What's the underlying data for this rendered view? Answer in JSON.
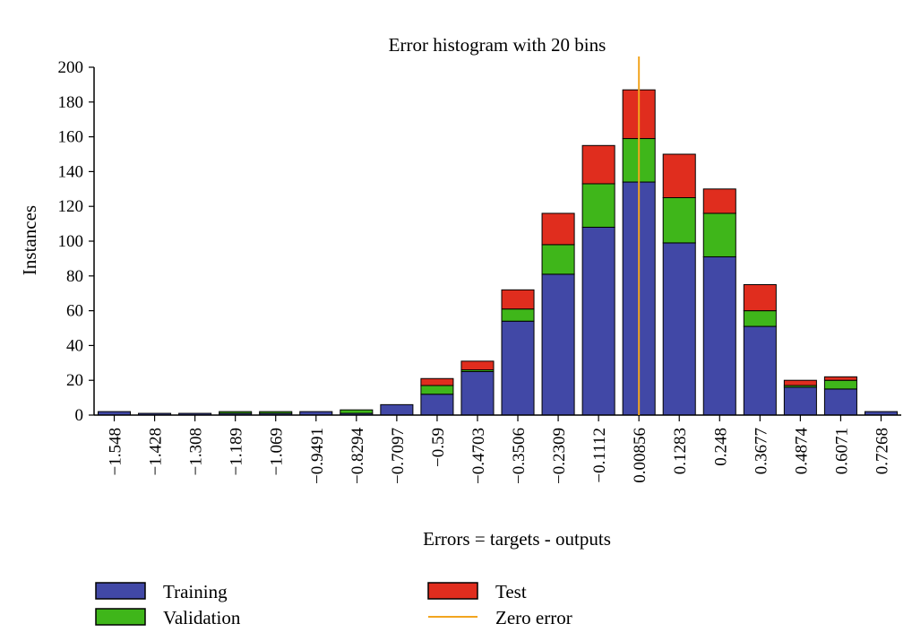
{
  "chart_data": {
    "type": "bar",
    "stacked": true,
    "title": "Error histogram with 20 bins",
    "xlabel": "Errors = targets - outputs",
    "ylabel": "Instances",
    "ylim": [
      0,
      200
    ],
    "yticks": [
      0,
      20,
      40,
      60,
      80,
      100,
      120,
      140,
      160,
      180,
      200
    ],
    "grid": false,
    "legend_position": "bottom",
    "categories": [
      "−1.548",
      "−1.428",
      "−1.308",
      "−1.189",
      "−1.069",
      "−0.9491",
      "−0.8294",
      "−0.7097",
      "−0.59",
      "−0.4703",
      "−0.3506",
      "−0.2309",
      "−0.1112",
      "0.00856",
      "0.1283",
      "0.248",
      "0.3677",
      "0.4874",
      "0.6071",
      "0.7268"
    ],
    "series": [
      {
        "name": "Training",
        "color": "#4148a6",
        "values": [
          2,
          1,
          1,
          1,
          1,
          2,
          1,
          6,
          12,
          25,
          54,
          81,
          108,
          134,
          99,
          91,
          51,
          16,
          15,
          2
        ]
      },
      {
        "name": "Validation",
        "color": "#3fb61a",
        "values": [
          0,
          0,
          0,
          1,
          1,
          0,
          2,
          0,
          5,
          1,
          7,
          17,
          25,
          25,
          26,
          25,
          9,
          1,
          5,
          0
        ]
      },
      {
        "name": "Test",
        "color": "#e02d1e",
        "values": [
          0,
          0,
          0,
          0,
          0,
          0,
          0,
          0,
          4,
          5,
          11,
          18,
          22,
          28,
          25,
          14,
          15,
          3,
          2,
          0
        ]
      }
    ],
    "reference_line": {
      "name": "Zero error",
      "color": "#f2a51f",
      "category_index": 13
    }
  }
}
